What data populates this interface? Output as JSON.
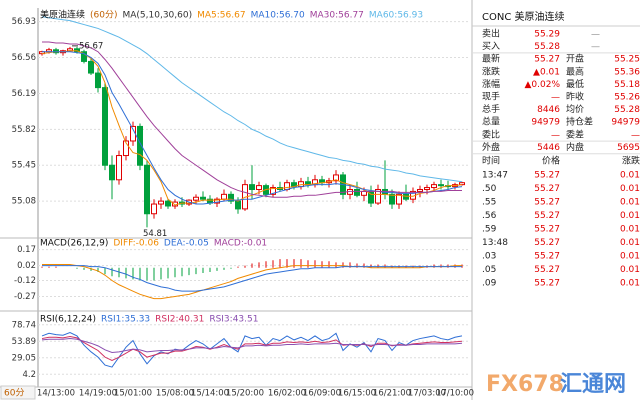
{
  "chart_data": [
    {
      "type": "candlestick",
      "title": "美原油连续",
      "subtitle": "(60分)",
      "indicator": "MA(5,10,30,60)",
      "high_label": "56.67",
      "low_label": "54.81",
      "up_color": "#e00000",
      "down_color": "#00a03c",
      "grid": true,
      "ylim": [
        54.7,
        57.05
      ],
      "yticks": [
        56.93,
        56.56,
        56.19,
        55.82,
        55.45,
        55.08
      ],
      "categories": [
        null,
        null,
        "14/13:00",
        null,
        null,
        null,
        null,
        null,
        "14/19:00",
        null,
        null,
        null,
        null,
        "15/01:00",
        null,
        null,
        null,
        null,
        null,
        "15/08:00",
        null,
        null,
        null,
        null,
        "15/14:00",
        null,
        null,
        null,
        null,
        "15/20:00",
        null,
        null,
        null,
        null,
        null,
        "16/02:00",
        null,
        null,
        null,
        null,
        "16/09:00",
        null,
        null,
        null,
        null,
        "16/15:00",
        null,
        null,
        null,
        null,
        "16/21:00",
        null,
        null,
        null,
        null,
        "17/03:00",
        null,
        null,
        null,
        "17/10:00",
        null
      ],
      "ohlc": {
        "open": [
          56.6,
          56.62,
          56.64,
          56.61,
          56.63,
          56.65,
          56.62,
          56.52,
          56.4,
          56.25,
          55.45,
          55.3,
          55.55,
          55.7,
          55.85,
          55.45,
          54.95,
          55.05,
          55.08,
          55.03,
          55.07,
          55.05,
          55.09,
          55.12,
          55.1,
          55.06,
          55.1,
          55.15,
          55.08,
          55.0,
          55.25,
          55.2,
          55.24,
          55.15,
          55.22,
          55.2,
          55.27,
          55.23,
          55.28,
          55.25,
          55.3,
          55.27,
          55.29,
          55.35,
          55.15,
          55.2,
          55.14,
          55.18,
          55.06,
          55.2,
          55.15,
          55.05,
          55.15,
          55.1,
          55.18,
          55.2,
          55.22,
          55.25,
          55.24,
          55.23,
          55.25
        ],
        "high": [
          56.63,
          56.66,
          56.66,
          56.64,
          56.67,
          56.67,
          56.64,
          56.55,
          56.45,
          56.3,
          55.55,
          55.6,
          55.75,
          55.9,
          55.88,
          55.5,
          55.1,
          55.12,
          55.1,
          55.1,
          55.12,
          55.1,
          55.15,
          55.18,
          55.14,
          55.12,
          55.2,
          55.18,
          55.12,
          55.3,
          55.45,
          55.28,
          55.26,
          55.25,
          55.28,
          55.3,
          55.3,
          55.32,
          55.33,
          55.35,
          55.34,
          55.32,
          55.4,
          55.38,
          55.25,
          55.28,
          55.22,
          55.24,
          55.25,
          55.5,
          55.2,
          55.18,
          55.25,
          55.22,
          55.24,
          55.25,
          55.28,
          55.3,
          55.29,
          55.27,
          55.28
        ],
        "low": [
          56.58,
          56.6,
          56.59,
          56.58,
          56.62,
          56.6,
          56.5,
          56.38,
          56.2,
          55.4,
          55.1,
          55.25,
          55.5,
          55.65,
          55.4,
          54.81,
          54.9,
          55.0,
          55.0,
          55.0,
          55.02,
          55.03,
          55.05,
          55.08,
          55.04,
          55.02,
          55.08,
          55.05,
          54.95,
          54.98,
          55.1,
          55.15,
          55.12,
          55.12,
          55.18,
          55.18,
          55.2,
          55.2,
          55.22,
          55.22,
          55.24,
          55.22,
          55.25,
          55.1,
          55.1,
          55.12,
          55.08,
          55.02,
          55.04,
          55.1,
          55.0,
          55.0,
          55.08,
          55.06,
          55.12,
          55.15,
          55.18,
          55.2,
          55.19,
          55.2,
          55.24
        ],
        "close": [
          56.62,
          56.64,
          56.61,
          56.63,
          56.65,
          56.62,
          56.52,
          56.4,
          56.25,
          55.45,
          55.3,
          55.55,
          55.7,
          55.85,
          55.45,
          54.95,
          55.05,
          55.08,
          55.03,
          55.07,
          55.05,
          55.09,
          55.12,
          55.1,
          55.06,
          55.1,
          55.15,
          55.08,
          55.0,
          55.25,
          55.2,
          55.24,
          55.15,
          55.22,
          55.2,
          55.27,
          55.23,
          55.28,
          55.25,
          55.3,
          55.27,
          55.29,
          55.35,
          55.15,
          55.2,
          55.14,
          55.18,
          55.06,
          55.2,
          55.15,
          55.05,
          55.15,
          55.1,
          55.18,
          55.2,
          55.22,
          55.25,
          55.24,
          55.23,
          55.25,
          55.27
        ]
      },
      "series": [
        {
          "name": "MA5:56.67",
          "color": "#f08a00",
          "values": [
            56.6,
            56.61,
            56.62,
            56.62,
            56.63,
            56.63,
            56.6,
            56.55,
            56.47,
            56.3,
            56.05,
            55.86,
            55.68,
            55.58,
            55.56,
            55.5,
            55.4,
            55.28,
            55.1,
            55.04,
            55.06,
            55.06,
            55.07,
            55.09,
            55.09,
            55.09,
            55.1,
            55.1,
            55.08,
            55.12,
            55.14,
            55.17,
            55.2,
            55.21,
            55.21,
            55.22,
            55.23,
            55.25,
            55.25,
            55.26,
            55.27,
            55.28,
            55.3,
            55.27,
            55.25,
            55.23,
            55.2,
            55.15,
            55.15,
            55.15,
            55.14,
            55.14,
            55.13,
            55.13,
            55.16,
            55.17,
            55.19,
            55.22,
            55.24,
            55.24,
            55.25
          ]
        },
        {
          "name": "MA10:56.70",
          "color": "#2f6fd6",
          "values": [
            56.62,
            56.62,
            56.62,
            56.62,
            56.62,
            56.61,
            56.6,
            56.56,
            56.5,
            56.38,
            56.2,
            56.08,
            55.95,
            55.82,
            55.68,
            55.55,
            55.42,
            55.3,
            55.2,
            55.14,
            55.1,
            55.07,
            55.05,
            55.05,
            55.06,
            55.07,
            55.08,
            55.09,
            55.09,
            55.1,
            55.1,
            55.12,
            55.14,
            55.16,
            55.18,
            55.2,
            55.22,
            55.23,
            55.24,
            55.25,
            55.25,
            55.25,
            55.26,
            55.25,
            55.24,
            55.22,
            55.2,
            55.19,
            55.18,
            55.17,
            55.17,
            55.16,
            55.16,
            55.16,
            55.17,
            55.17,
            55.18,
            55.19,
            55.2,
            55.22,
            55.23
          ]
        },
        {
          "name": "MA30:56.77",
          "color": "#a0409a",
          "values": [
            56.72,
            56.72,
            56.71,
            56.71,
            56.7,
            56.7,
            56.68,
            56.66,
            56.62,
            56.54,
            56.45,
            56.35,
            56.25,
            56.15,
            56.05,
            55.95,
            55.86,
            55.78,
            55.7,
            55.62,
            55.55,
            55.5,
            55.45,
            55.4,
            55.35,
            55.3,
            55.26,
            55.22,
            55.19,
            55.17,
            55.15,
            55.14,
            55.13,
            55.12,
            55.12,
            55.12,
            55.13,
            55.13,
            55.14,
            55.14,
            55.15,
            55.16,
            55.17,
            55.17,
            55.18,
            55.18,
            55.18,
            55.18,
            55.18,
            55.18,
            55.18,
            55.17,
            55.17,
            55.17,
            55.17,
            55.17,
            55.18,
            55.18,
            55.19,
            55.19,
            55.19
          ]
        },
        {
          "name": "MA60:56.93",
          "color": "#5fb8e8",
          "values": [
            56.98,
            56.97,
            56.96,
            56.95,
            56.94,
            56.92,
            56.9,
            56.88,
            56.86,
            56.83,
            56.8,
            56.77,
            56.73,
            56.69,
            56.65,
            56.6,
            56.54,
            56.48,
            56.42,
            56.36,
            56.3,
            56.25,
            56.2,
            56.15,
            56.1,
            56.05,
            56.0,
            55.96,
            55.91,
            55.87,
            55.82,
            55.79,
            55.75,
            55.72,
            55.68,
            55.65,
            55.63,
            55.61,
            55.59,
            55.57,
            55.55,
            55.53,
            55.52,
            55.5,
            55.49,
            55.47,
            55.46,
            55.44,
            55.43,
            55.41,
            55.4,
            55.39,
            55.37,
            55.36,
            55.34,
            55.33,
            55.32,
            55.31,
            55.3,
            55.29,
            55.28
          ]
        }
      ]
    },
    {
      "type": "macd",
      "title": "MACD(26,12,9)",
      "grid": true,
      "ylim": [
        -0.35,
        0.26
      ],
      "yticks": [
        0.17,
        0.02,
        -0.12,
        -0.27
      ],
      "up_color": "#e00000",
      "down_color": "#00a03c",
      "series": [
        {
          "name": "DIFF:-0.06",
          "color": "#f08a00",
          "values": [
            0.03,
            0.03,
            0.03,
            0.03,
            0.03,
            0.02,
            0.01,
            -0.01,
            -0.03,
            -0.07,
            -0.12,
            -0.16,
            -0.19,
            -0.22,
            -0.25,
            -0.27,
            -0.29,
            -0.29,
            -0.28,
            -0.27,
            -0.26,
            -0.25,
            -0.23,
            -0.21,
            -0.19,
            -0.17,
            -0.15,
            -0.13,
            -0.1,
            -0.08,
            -0.06,
            -0.04,
            -0.02,
            -0.01,
            0.0,
            0.01,
            0.02,
            0.02,
            0.02,
            0.02,
            0.02,
            0.02,
            0.02,
            0.02,
            0.01,
            0.01,
            0.01,
            0.0,
            0.0,
            0.0,
            0.0,
            0.0,
            0.0,
            0.0,
            0.0,
            0.01,
            0.01,
            0.01,
            0.01,
            0.02,
            0.02
          ]
        },
        {
          "name": "DEA:-0.05",
          "color": "#2f6fd6",
          "values": [
            0.02,
            0.02,
            0.02,
            0.02,
            0.02,
            0.02,
            0.02,
            0.01,
            0.01,
            0.0,
            -0.02,
            -0.04,
            -0.06,
            -0.09,
            -0.11,
            -0.14,
            -0.16,
            -0.18,
            -0.19,
            -0.21,
            -0.22,
            -0.22,
            -0.22,
            -0.21,
            -0.2,
            -0.19,
            -0.18,
            -0.16,
            -0.14,
            -0.12,
            -0.1,
            -0.08,
            -0.06,
            -0.05,
            -0.04,
            -0.03,
            -0.02,
            -0.01,
            -0.01,
            0.0,
            0.0,
            0.0,
            0.0,
            0.01,
            0.01,
            0.01,
            0.01,
            0.01,
            0.01,
            0.01,
            0.01,
            0.01,
            0.01,
            0.01,
            0.01,
            0.01,
            0.01,
            0.01,
            0.01,
            0.01,
            0.01
          ]
        },
        {
          "name": "MACD:-0.01",
          "color": "#a0409a",
          "type": "bar",
          "values": [
            0.01,
            0.01,
            0.01,
            0.0,
            0.0,
            -0.01,
            -0.02,
            -0.03,
            -0.04,
            -0.06,
            -0.08,
            -0.09,
            -0.1,
            -0.11,
            -0.12,
            -0.12,
            -0.12,
            -0.11,
            -0.1,
            -0.09,
            -0.08,
            -0.07,
            -0.06,
            -0.05,
            -0.04,
            -0.03,
            -0.02,
            -0.01,
            0.01,
            0.02,
            0.04,
            0.05,
            0.06,
            0.07,
            0.08,
            0.08,
            0.08,
            0.08,
            0.07,
            0.07,
            0.06,
            0.06,
            0.05,
            0.05,
            0.05,
            0.04,
            0.04,
            0.03,
            0.03,
            0.03,
            0.02,
            0.02,
            0.02,
            0.02,
            0.02,
            0.02,
            0.03,
            0.03,
            0.03,
            0.03,
            0.03
          ]
        }
      ]
    },
    {
      "type": "line",
      "title": "RSI(6,12,24)",
      "grid": true,
      "ylim": [
        -12,
        89
      ],
      "yticks": [
        78.74,
        53.89,
        29.05,
        4.2
      ],
      "series": [
        {
          "name": "RSI1:35.33",
          "color": "#2f6fd6",
          "values": [
            62,
            66,
            64,
            63,
            67,
            62,
            48,
            38,
            30,
            18,
            15,
            30,
            45,
            55,
            35,
            20,
            32,
            38,
            35,
            42,
            40,
            48,
            55,
            50,
            42,
            50,
            58,
            45,
            38,
            62,
            58,
            60,
            48,
            58,
            55,
            62,
            56,
            60,
            55,
            62,
            55,
            58,
            66,
            40,
            50,
            45,
            52,
            38,
            58,
            55,
            40,
            52,
            48,
            55,
            58,
            60,
            62,
            58,
            56,
            60,
            62
          ]
        },
        {
          "name": "RSI2:40.31",
          "color": "#d03060",
          "values": [
            58,
            60,
            60,
            59,
            61,
            59,
            52,
            46,
            40,
            30,
            25,
            30,
            36,
            42,
            38,
            30,
            33,
            36,
            36,
            39,
            39,
            42,
            46,
            45,
            42,
            45,
            49,
            45,
            42,
            50,
            50,
            51,
            48,
            51,
            51,
            53,
            52,
            53,
            52,
            54,
            52,
            53,
            56,
            48,
            49,
            48,
            50,
            46,
            51,
            51,
            47,
            49,
            48,
            50,
            51,
            52,
            53,
            52,
            52,
            53,
            54
          ]
        },
        {
          "name": "RSI3:43.51",
          "color": "#8a4fb0",
          "values": [
            56,
            57,
            57,
            57,
            58,
            57,
            54,
            51,
            47,
            41,
            37,
            38,
            40,
            42,
            41,
            38,
            39,
            40,
            40,
            41,
            41,
            42,
            44,
            44,
            43,
            44,
            46,
            45,
            44,
            47,
            47,
            48,
            47,
            48,
            48,
            49,
            49,
            50,
            49,
            50,
            50,
            50,
            51,
            49,
            49,
            49,
            49,
            48,
            49,
            49,
            48,
            48,
            48,
            49,
            49,
            50,
            50,
            50,
            50,
            50,
            51
          ]
        }
      ]
    }
  ],
  "period": "60分",
  "watermark": [
    "FX678",
    "汇通网"
  ],
  "quote": {
    "title": "CONC 美原油连续",
    "rows": [
      [
        "卖出",
        "55.29",
        "—"
      ],
      [
        "买入",
        "55.28",
        "—"
      ],
      [
        "最新",
        "55.27",
        "开盘",
        "55.25"
      ],
      [
        "涨跌",
        "▲0.01",
        "最高",
        "55.36"
      ],
      [
        "涨幅",
        "▲0.02%",
        "最低",
        "55.18"
      ],
      [
        "现手",
        "—",
        "昨收",
        "55.26"
      ],
      [
        "总手",
        "8446",
        "均价",
        "55.28"
      ],
      [
        "总量",
        "94979",
        "持仓差",
        "94979"
      ],
      [
        "委比",
        "—",
        "委差",
        "—"
      ],
      [
        "外盘",
        "5446",
        "内盘",
        "5695"
      ]
    ],
    "trades_header": [
      "时间",
      "价格",
      "涨跌"
    ],
    "trades": [
      [
        "13:47",
        "55.27",
        "0.01"
      ],
      [
        ".50",
        "55.27",
        "0.01"
      ],
      [
        ".55",
        "55.27",
        "0.01"
      ],
      [
        ".56",
        "55.27",
        "0.01"
      ],
      [
        ".59",
        "55.27",
        "0.01"
      ],
      [
        "13:48",
        "55.27",
        "0.01"
      ],
      [
        ".03",
        "55.27",
        "0.01"
      ],
      [
        ".05",
        "55.27",
        "0.01"
      ],
      [
        ".09",
        "55.27",
        "0.01"
      ]
    ]
  }
}
